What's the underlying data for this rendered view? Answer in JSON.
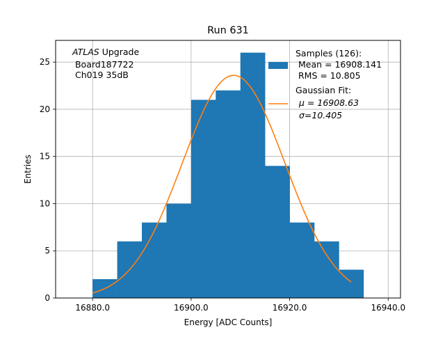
{
  "chart_data": {
    "type": "bar",
    "title": "Run 631",
    "xlabel": "Energy [ADC Counts]",
    "ylabel": "Entries",
    "xlim": [
      16872.5,
      16942.5
    ],
    "ylim": [
      0,
      27.3
    ],
    "grid": true,
    "xticks": [
      16880.0,
      16900.0,
      16920.0,
      16940.0
    ],
    "xtick_labels": [
      "16880.0",
      "16900.0",
      "16920.0",
      "16940.0"
    ],
    "yticks": [
      0,
      5,
      10,
      15,
      20,
      25
    ],
    "ytick_labels": [
      "0",
      "5",
      "10",
      "15",
      "20",
      "25"
    ],
    "histogram": {
      "bin_edges": [
        16880,
        16885,
        16890,
        16895,
        16900,
        16905,
        16910,
        16915,
        16920,
        16925,
        16930,
        16935
      ],
      "counts": [
        2,
        6,
        8,
        10,
        21,
        22,
        26,
        14,
        8,
        6,
        3
      ],
      "color": "#1f77b4"
    },
    "fit": {
      "type": "gaussian",
      "mu": 16908.63,
      "sigma": 10.405,
      "amplitude": 23.6,
      "x_range": [
        16880,
        16932.5
      ],
      "color": "#ff7f0e"
    },
    "annotation": {
      "italic_part": "ATLAS",
      "line1_rest": " Upgrade",
      "line2": " Board187722",
      "line3": " Ch019 35dB"
    },
    "legend": {
      "placement": "top-right",
      "entries": [
        {
          "lines": [
            "Samples (126):",
            " Mean = 16908.141",
            " RMS = 10.805"
          ],
          "color": "#1f77b4",
          "kind": "patch"
        },
        {
          "lines": [
            "Gaussian Fit:",
            "μ = 16908.63",
            "σ=10.405"
          ],
          "color": "#ff7f0e",
          "kind": "line"
        }
      ]
    }
  }
}
